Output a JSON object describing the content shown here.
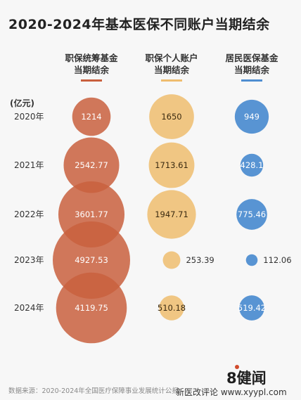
{
  "title": "2020-2024年基本医保不同账户当期结余",
  "unit_label": "(亿元)",
  "source": "数据来源：2020-2024年全国医疗保障事业发展统计公报",
  "logo": {
    "text": "8健闻"
  },
  "watermark": "新医改评论 www.xyypl.com",
  "colors": {
    "pool": "#c9603e",
    "personal": "#efbd6f",
    "resident": "#4f8ed1"
  },
  "columns": [
    {
      "label_line1": "职保统筹基金",
      "label_line2": "当期结余",
      "color": "#c9603e"
    },
    {
      "label_line1": "职保个人账户",
      "label_line2": "当期结余",
      "color": "#efbd6f"
    },
    {
      "label_line1": "居民医保基金",
      "label_line2": "当期结余",
      "color": "#4f8ed1"
    }
  ],
  "chart_data": {
    "type": "bubble",
    "title": "2020-2024年基本医保不同账户当期结余",
    "unit": "亿元",
    "categories": [
      "2020年",
      "2021年",
      "2022年",
      "2023年",
      "2024年"
    ],
    "series": [
      {
        "name": "职保统筹基金当期结余",
        "values": [
          1214,
          2542.77,
          3601.77,
          4927.53,
          4119.75
        ],
        "labels": [
          "1214",
          "2542.77",
          "3601.77",
          "4927.53",
          "4119.75"
        ]
      },
      {
        "name": "职保个人账户当期结余",
        "values": [
          1650,
          1713.61,
          1947.71,
          253.39,
          510.18
        ],
        "labels": [
          "1650",
          "1713.61",
          "1947.71",
          "253.39",
          "510.18"
        ]
      },
      {
        "name": "居民医保基金当期结余",
        "values": [
          949,
          428.1,
          775.46,
          112.06,
          519.42
        ],
        "labels": [
          "949",
          "428.1",
          "775.46",
          "112.06",
          "519.42"
        ]
      }
    ]
  }
}
